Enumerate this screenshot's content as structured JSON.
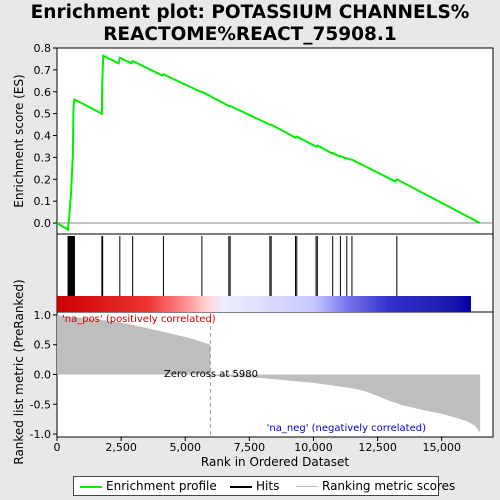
{
  "title_line1": "Enrichment plot: POTASSIUM CHANNELS%",
  "title_line2": "REACTOME%REACT_75908.1",
  "colors": {
    "enrichment_line": "#00ee00",
    "hit_line": "#000000",
    "metric_fill": "#bebebe",
    "pos_label": "#cc0000",
    "neg_label": "#0000cc"
  },
  "legend": {
    "enrichment_profile": "Enrichment profile",
    "hits": "Hits",
    "ranking_metric": "Ranking metric scores"
  },
  "chart_data": {
    "type": "line",
    "xlabel": "Rank in Ordered Dataset",
    "xlim": [
      0,
      17000
    ],
    "xticks": [
      "0",
      "2,500",
      "5,000",
      "7,500",
      "10,000",
      "12,500",
      "15,000"
    ],
    "xtick_values": [
      0,
      2500,
      5000,
      7500,
      10000,
      12500,
      15000
    ],
    "top_panel": {
      "ylabel": "Enrichment score (ES)",
      "ylim": [
        -0.05,
        0.8
      ],
      "yticks": [
        "0.0",
        "0.1",
        "0.2",
        "0.3",
        "0.4",
        "0.5",
        "0.6",
        "0.7",
        "0.8"
      ],
      "ytick_values": [
        0,
        0.1,
        0.2,
        0.3,
        0.4,
        0.5,
        0.6,
        0.7,
        0.8
      ],
      "es_profile": {
        "x": [
          0,
          430,
          450,
          480,
          500,
          520,
          540,
          560,
          580,
          600,
          620,
          640,
          650,
          680,
          1750,
          1760,
          1780,
          1800,
          2400,
          2450,
          2900,
          2950,
          4100,
          4150,
          5600,
          5650,
          6700,
          6750,
          8300,
          8350,
          9300,
          9350,
          10100,
          10150,
          10700,
          10750,
          11000,
          11050,
          11300,
          11350,
          11450,
          11500,
          13200,
          13250,
          16500
        ],
        "y": [
          0,
          -0.03,
          0.0,
          0.03,
          0.07,
          0.1,
          0.12,
          0.17,
          0.22,
          0.27,
          0.32,
          0.5,
          0.54,
          0.565,
          0.5,
          0.6,
          0.7,
          0.765,
          0.73,
          0.755,
          0.73,
          0.74,
          0.675,
          0.68,
          0.6,
          0.6,
          0.535,
          0.535,
          0.45,
          0.45,
          0.39,
          0.395,
          0.35,
          0.355,
          0.32,
          0.32,
          0.305,
          0.305,
          0.295,
          0.295,
          0.29,
          0.29,
          0.19,
          0.2,
          0.0
        ]
      }
    },
    "hits": [
      430,
      450,
      480,
      500,
      520,
      540,
      560,
      580,
      600,
      620,
      640,
      650,
      680,
      1750,
      1760,
      1780,
      2450,
      2950,
      4150,
      5650,
      6700,
      6750,
      8300,
      8350,
      9300,
      9350,
      10100,
      10150,
      10750,
      11050,
      11300,
      11500,
      13250
    ],
    "bottom_panel": {
      "ylabel": "Ranked list metric (PreRanked)",
      "ylim": [
        -1.05,
        1.05
      ],
      "yticks": [
        "1.0",
        "0.5",
        "0.0",
        "-0.5",
        "-1.0"
      ],
      "ytick_values": [
        1,
        0.5,
        0,
        -0.5,
        -1
      ],
      "metric": {
        "x": [
          0,
          100,
          500,
          1000,
          1500,
          2000,
          2500,
          3000,
          3500,
          4000,
          4500,
          5000,
          5500,
          5980,
          5981,
          7000,
          8000,
          9000,
          10000,
          11000,
          11500,
          12000,
          12500,
          13000,
          13500,
          14000,
          14500,
          15000,
          15500,
          16000,
          16300,
          16500
        ],
        "y": [
          1.0,
          0.99,
          0.97,
          0.95,
          0.93,
          0.9,
          0.87,
          0.83,
          0.78,
          0.73,
          0.68,
          0.63,
          0.57,
          0.5,
          -0.02,
          -0.04,
          -0.06,
          -0.1,
          -0.14,
          -0.2,
          -0.23,
          -0.28,
          -0.36,
          -0.45,
          -0.52,
          -0.57,
          -0.62,
          -0.66,
          -0.72,
          -0.79,
          -0.86,
          -0.98
        ]
      },
      "zero_cross": 5980,
      "zero_cross_label": "Zero cross at 5980",
      "pos_label": "'na_pos' (positively correlated)",
      "neg_label": "'na_neg' (negatively correlated)"
    }
  }
}
